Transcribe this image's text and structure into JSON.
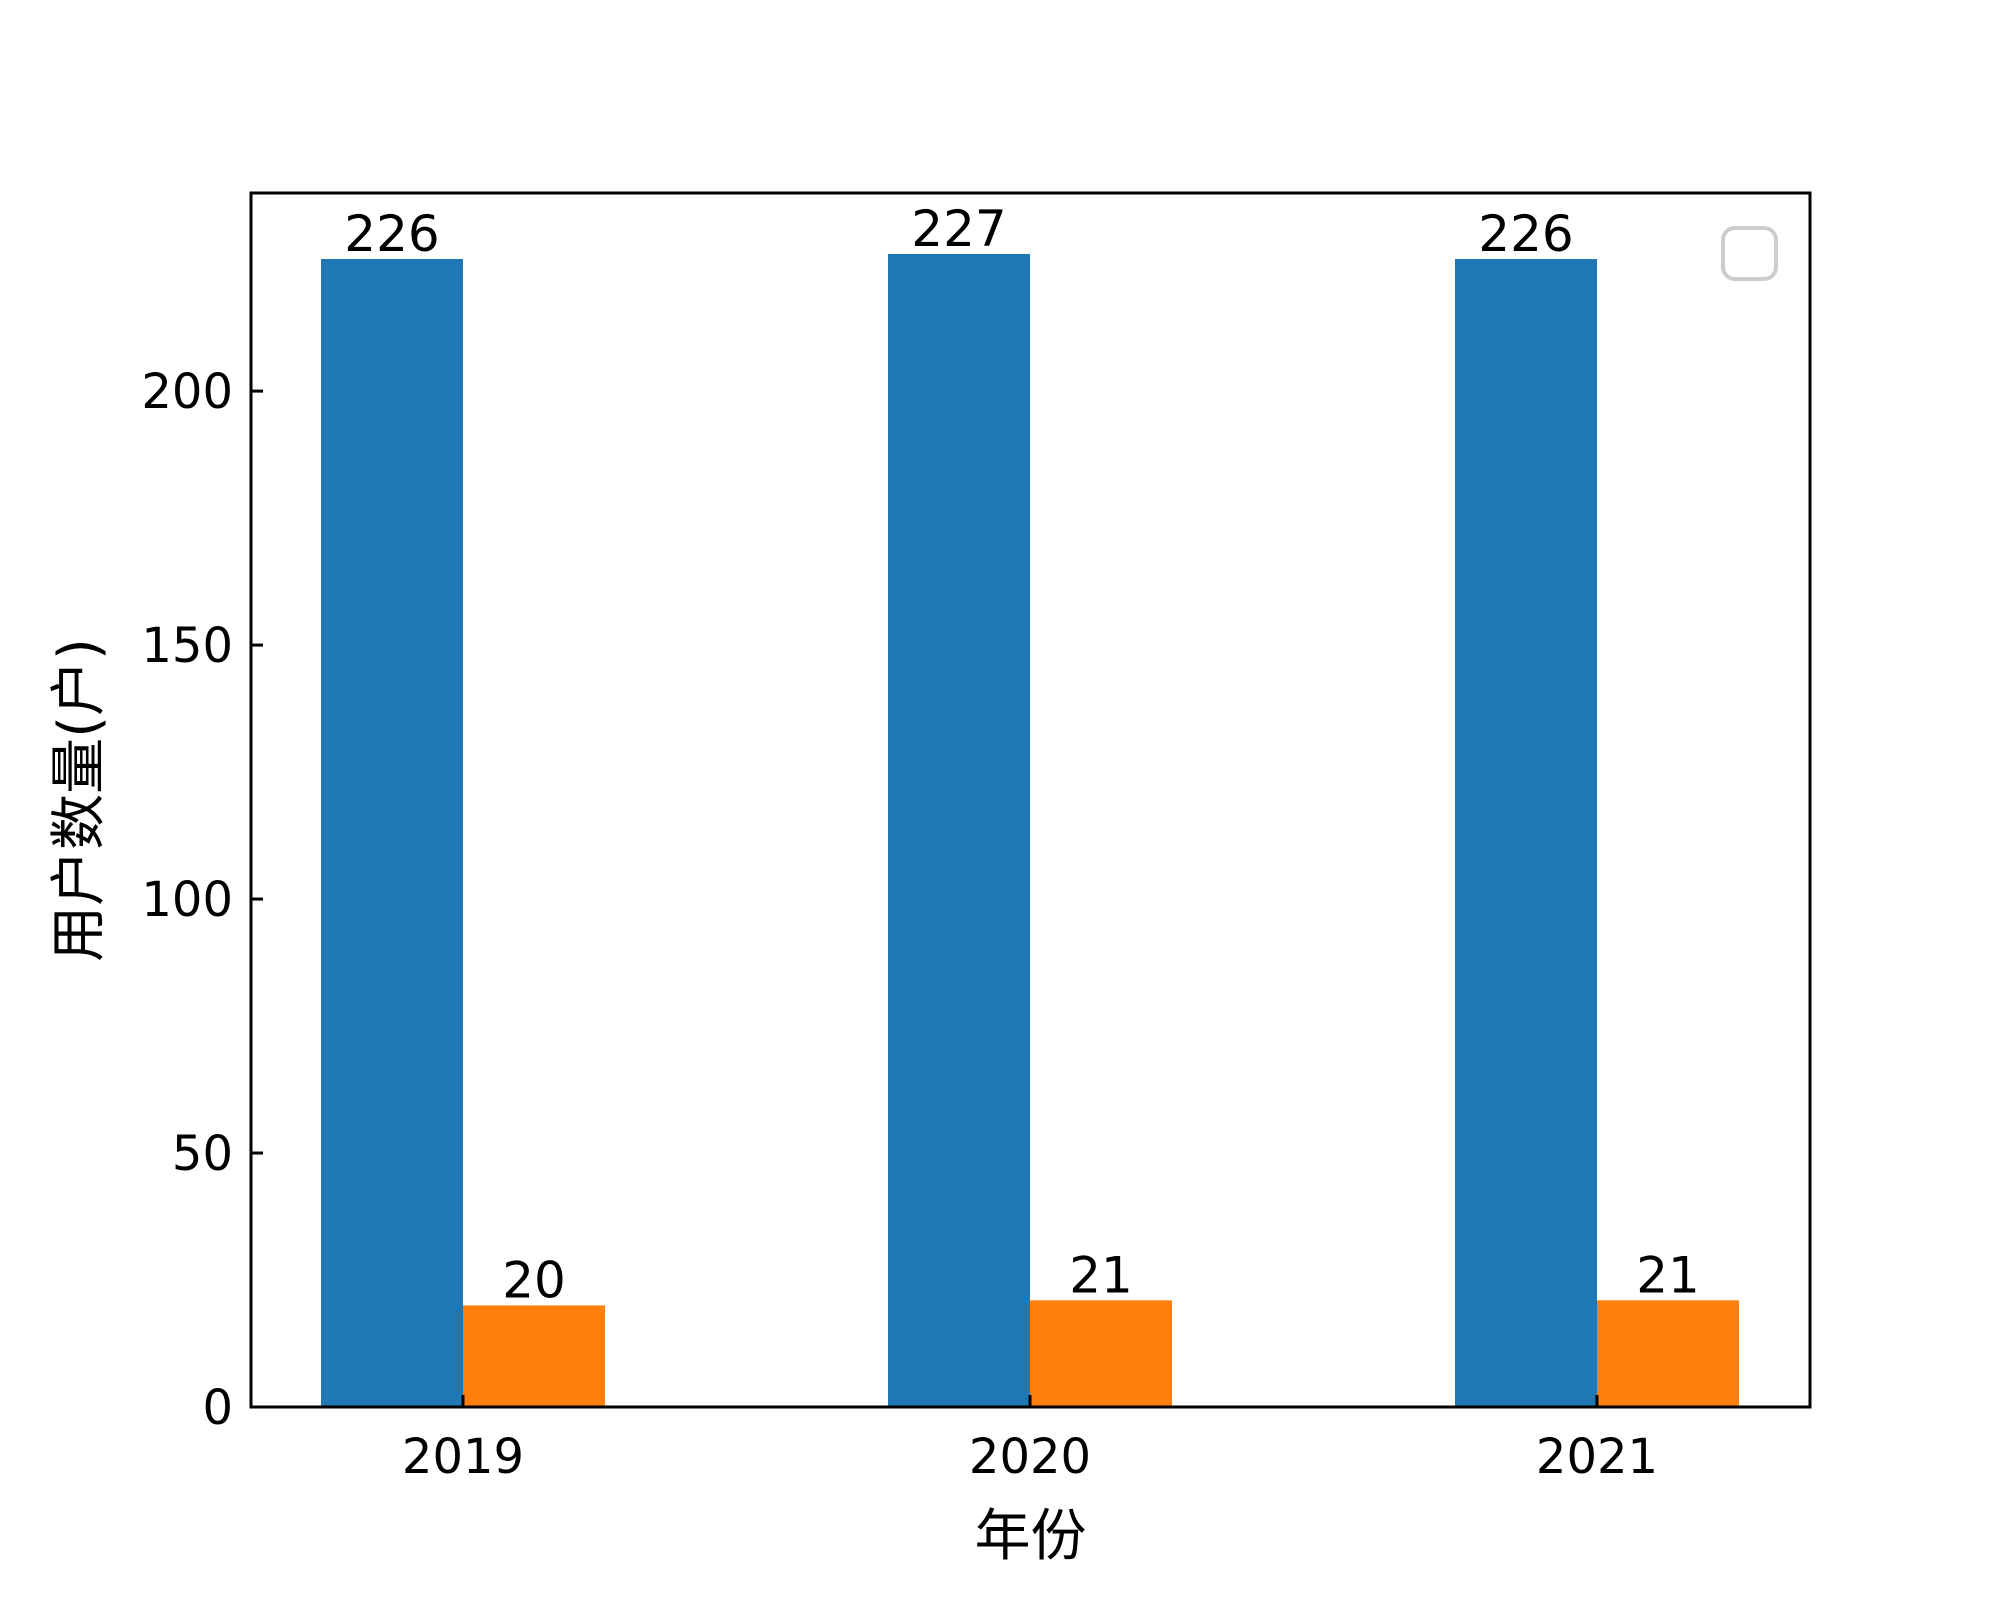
{
  "chart_data": {
    "type": "bar",
    "categories": [
      "2019",
      "2020",
      "2021"
    ],
    "series": [
      {
        "values": [
          226,
          227,
          226
        ],
        "color": "#1f77b4"
      },
      {
        "values": [
          20,
          21,
          21
        ],
        "color": "#ff7f0e"
      }
    ],
    "title": "",
    "xlabel": "年份",
    "ylabel": "用户数量(户)",
    "ylim": [
      0,
      239
    ],
    "yticks": [
      0,
      50,
      100,
      150,
      200
    ],
    "grid": false,
    "legend": "top-right",
    "legend_entries": []
  }
}
